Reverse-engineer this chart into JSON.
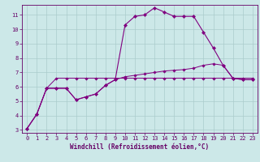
{
  "xlabel": "Windchill (Refroidissement éolien,°C)",
  "background_color": "#cce8e8",
  "grid_color": "#aacccc",
  "line_color": "#800080",
  "spine_color": "#660066",
  "xlim": [
    -0.5,
    23.5
  ],
  "ylim": [
    2.8,
    11.7
  ],
  "xticks": [
    0,
    1,
    2,
    3,
    4,
    5,
    6,
    7,
    8,
    9,
    10,
    11,
    12,
    13,
    14,
    15,
    16,
    17,
    18,
    19,
    20,
    21,
    22,
    23
  ],
  "yticks": [
    3,
    4,
    5,
    6,
    7,
    8,
    9,
    10,
    11
  ],
  "series1_x": [
    0,
    1,
    2,
    3,
    4,
    5,
    6,
    7,
    8,
    9,
    10,
    11,
    12,
    13,
    14,
    15,
    16,
    17,
    18,
    19,
    20,
    21,
    22,
    23
  ],
  "series1_y": [
    3.1,
    4.1,
    5.9,
    5.9,
    5.9,
    5.1,
    5.3,
    5.5,
    6.1,
    6.5,
    10.3,
    10.9,
    11.0,
    11.5,
    11.2,
    10.9,
    10.9,
    10.9,
    9.8,
    8.7,
    7.5,
    6.6,
    6.5,
    6.5
  ],
  "series2_x": [
    0,
    1,
    2,
    3,
    4,
    5,
    6,
    7,
    8,
    9,
    10,
    11,
    12,
    13,
    14,
    15,
    16,
    17,
    18,
    19,
    20,
    21,
    22,
    23
  ],
  "series2_y": [
    3.1,
    4.1,
    5.9,
    6.6,
    6.6,
    6.6,
    6.6,
    6.6,
    6.6,
    6.6,
    6.6,
    6.6,
    6.6,
    6.6,
    6.6,
    6.6,
    6.6,
    6.6,
    6.6,
    6.6,
    6.6,
    6.6,
    6.6,
    6.6
  ],
  "series3_x": [
    0,
    1,
    2,
    3,
    4,
    5,
    6,
    7,
    8,
    9,
    10,
    11,
    12,
    13,
    14,
    15,
    16,
    17,
    18,
    19,
    20,
    21,
    22,
    23
  ],
  "series3_y": [
    3.1,
    4.1,
    5.9,
    5.9,
    5.9,
    5.1,
    5.3,
    5.5,
    6.1,
    6.5,
    6.7,
    6.8,
    6.9,
    7.0,
    7.1,
    7.15,
    7.2,
    7.3,
    7.5,
    7.6,
    7.5,
    6.6,
    6.5,
    6.5
  ],
  "tick_fontsize": 5.0,
  "xlabel_fontsize": 5.5,
  "marker": "D",
  "marker_size1": 2.2,
  "marker_size2": 1.8,
  "lw1": 0.8,
  "lw2": 0.7
}
